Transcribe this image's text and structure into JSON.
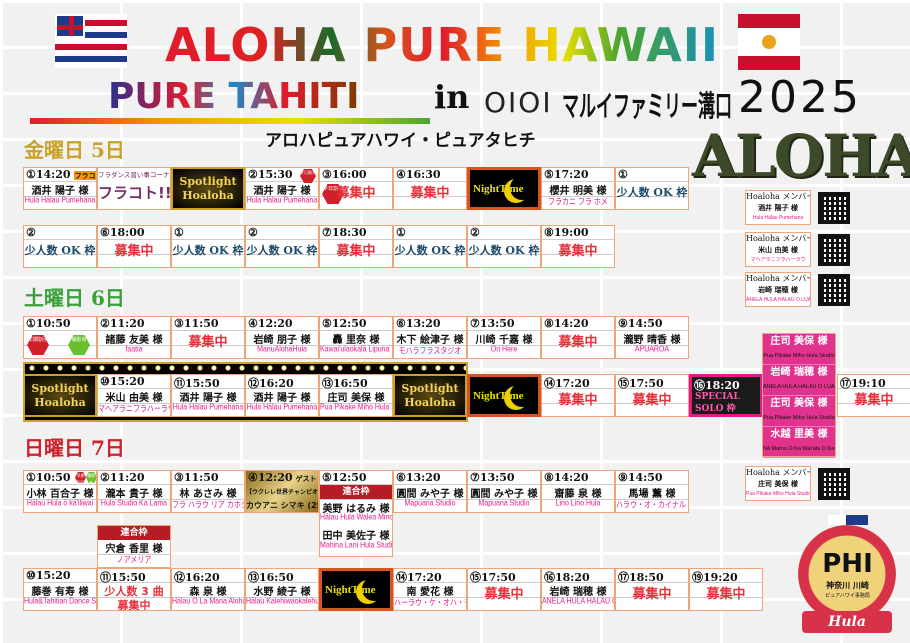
{
  "header": {
    "title_line1": "ALOHA PURE HAWAII",
    "title_line2": "PURE TAHITI",
    "in": "in",
    "marui_logo": "OIOI",
    "venue": "マルイファミリー溝口",
    "year": "2025",
    "subtitle": "アロハピュアハワイ・ピュアタヒチ",
    "aloha_logo": "ALOHA",
    "flags": [
      "hawaii-flag",
      "french-polynesia-flag"
    ]
  },
  "colors": {
    "cell_border": "#f0a578",
    "studio": "#e6198a",
    "recruit": "#e8303a",
    "small_group": "#1b4a6b",
    "friday": "#c9a227",
    "saturday": "#3aa13a",
    "sunday": "#d0202a"
  },
  "friday": {
    "label": "金曜日 5日",
    "rows": [
      {
        "slots": [
          {
            "type": "perf",
            "no": "①",
            "time": "14:20",
            "tag": "フラコト",
            "name": "酒井 陽子 様",
            "studio": "Hula Hālau Pumehana"
          },
          {
            "type": "furakoto",
            "top": "フラダンス習い事コーナー",
            "big": "フラコト!!"
          },
          {
            "type": "spotlight",
            "label": "Spotlight\nHoaloha"
          },
          {
            "type": "perf",
            "no": "②",
            "time": "15:30",
            "badge": "平日割引",
            "name": "酒井 陽子 様",
            "studio": "Hula Hālau Pumehana"
          },
          {
            "type": "recruit",
            "no": "③",
            "time": "16:00",
            "badge": "平日割引",
            "status": "募集中"
          },
          {
            "type": "recruit",
            "no": "④",
            "time": "16:30",
            "status": "募集中"
          },
          {
            "type": "night",
            "label": "NightTime"
          },
          {
            "type": "perf",
            "no": "⑤",
            "time": "17:20",
            "name": "櫻井 明美 様",
            "studio": "フラカニ フラ ホメ"
          },
          {
            "type": "small",
            "no": "①",
            "status": "少人数 OK 枠"
          }
        ]
      },
      {
        "slots": [
          {
            "type": "small",
            "no": "②",
            "status": "少人数 OK 枠"
          },
          {
            "type": "recruit",
            "no": "⑥",
            "time": "18:00",
            "status": "募集中"
          },
          {
            "type": "small",
            "no": "①",
            "status": "少人数 OK 枠"
          },
          {
            "type": "small",
            "no": "②",
            "status": "少人数 OK 枠"
          },
          {
            "type": "recruit",
            "no": "⑦",
            "time": "18:30",
            "status": "募集中"
          },
          {
            "type": "small",
            "no": "①",
            "status": "少人数 OK 枠"
          },
          {
            "type": "small",
            "no": "②",
            "status": "少人数 OK 枠"
          },
          {
            "type": "recruit",
            "no": "⑧",
            "time": "19:00",
            "status": "募集中"
          }
        ]
      }
    ]
  },
  "saturday": {
    "label": "土曜日 6日",
    "rows": [
      {
        "slots": [
          {
            "type": "badges",
            "no": "①",
            "time": "10:50",
            "badges": [
              "早期割引",
              "撮影有"
            ]
          },
          {
            "type": "perf",
            "no": "②",
            "time": "11:20",
            "name": "諸藤 友美 様",
            "studio": "faatia"
          },
          {
            "type": "recruit",
            "no": "③",
            "time": "11:50",
            "status": "募集中"
          },
          {
            "type": "perf",
            "no": "④",
            "time": "12:20",
            "name": "岩崎 朋子 様",
            "studio": "ManuAlohaHula"
          },
          {
            "type": "perf",
            "no": "⑤",
            "time": "12:50",
            "name": "轟 里奈 様",
            "studio": "Kawai'ulaokalā Lipuna KA HULA LINO NA HOKU"
          },
          {
            "type": "perf",
            "no": "⑥",
            "time": "13:20",
            "name": "木下 絵津子 様",
            "studio": "モハラフラスタジオ"
          },
          {
            "type": "perf",
            "no": "⑦",
            "time": "13:50",
            "name": "川崎 千嘉 様",
            "studio": "Ori Here"
          },
          {
            "type": "recruit",
            "no": "⑧",
            "time": "14:20",
            "status": "募集中"
          },
          {
            "type": "perf",
            "no": "⑨",
            "time": "14:50",
            "name": "瀧野 晴香 様",
            "studio": "APUAROA"
          }
        ]
      },
      {
        "slots": [
          {
            "type": "spotlight",
            "label": "Spotlight\nHoaloha"
          },
          {
            "type": "perf",
            "no": "⑩",
            "time": "15:20",
            "name": "米山 由美 様",
            "studio": "マヘアラニフラハーラウ"
          },
          {
            "type": "perf",
            "no": "⑪",
            "time": "15:50",
            "name": "酒井 陽子 様",
            "studio": "Hula Hālau Pumehana"
          },
          {
            "type": "perf",
            "no": "⑫",
            "time": "16:20",
            "name": "酒井 陽子 様",
            "studio": "Hula Hālau Pumehana"
          },
          {
            "type": "perf",
            "no": "⑬",
            "time": "16:50",
            "name": "庄司 美保 様",
            "studio": "Pua Pīkake Miho Hula Studio"
          },
          {
            "type": "spotlight",
            "label": "Spotlight\nHoaloha"
          },
          {
            "type": "night",
            "label": "NightTime"
          },
          {
            "type": "recruit",
            "no": "⑭",
            "time": "17:20",
            "status": "募集中"
          },
          {
            "type": "recruit",
            "no": "⑮",
            "time": "17:50",
            "status": "募集中"
          },
          {
            "type": "special",
            "no": "⑯",
            "time": "18:20",
            "label": "SPECIAL\nSOLO 枠"
          },
          {
            "type": "stack",
            "members": [
              {
                "name": "庄司 美保 様",
                "studio": "Pua Pīkake Miho Hula Studio"
              },
              {
                "name": "岩崎 瑞穂 様",
                "studio": "ANELA HULA HALAU O LUANA"
              },
              {
                "name": "庄司 美保 様",
                "studio": "Pua Pīkake Miho Hula Studio"
              },
              {
                "name": "水越 里美 様",
                "studio": "Nā Mamo O Ka Wai'ala O Ka Lani"
              }
            ]
          },
          {
            "type": "recruit",
            "no": "⑰",
            "time": "19:10",
            "status": "募集中"
          }
        ]
      }
    ]
  },
  "sunday": {
    "label": "日曜日 7日",
    "rows": [
      {
        "slots": [
          {
            "type": "perf",
            "no": "①",
            "time": "10:50",
            "badges": [
              "早期割引",
              "撮影有"
            ],
            "name": "小林 百合子 様",
            "studio": "Hālau Hula ō kā'iliwai"
          },
          {
            "type": "perf",
            "no": "②",
            "time": "11:20",
            "name": "瀧本 貴子 様",
            "studio": "Hula Studio Ka Lama"
          },
          {
            "type": "perf",
            "no": "③",
            "time": "11:50",
            "name": "林 あさみ 様",
            "studio": "フラ ハラウ リア カホクラニ"
          },
          {
            "type": "guest",
            "no": "④",
            "time": "12:20",
            "tag": "ゲスト",
            "name": "【ウクレレ世界チャンピオン】",
            "studio": "カウアニ シマキ (25)"
          },
          {
            "type": "joint",
            "no": "⑤",
            "time": "12:50",
            "band": "連合枠",
            "name": "美野 はるみ 様",
            "studio": "Hālau Hula Walea Minoaka",
            "name2": "田中 美佐子 様",
            "studio2": "Mahina Lani Hula Studio"
          },
          {
            "type": "perf",
            "no": "⑥",
            "time": "13:20",
            "name": "圓間 みや子 様",
            "studio": "Mapuana Studio"
          },
          {
            "type": "perf",
            "no": "⑦",
            "time": "13:50",
            "name": "圓間 みや子 様",
            "studio": "Mapuana Studio"
          },
          {
            "type": "perf",
            "no": "⑧",
            "time": "14:20",
            "name": "齋藤 泉 様",
            "studio": "Lino Lino Hula"
          },
          {
            "type": "perf",
            "no": "⑨",
            "time": "14:50",
            "name": "馬場 薫 様",
            "studio": "ハラウ・オ・カイナル・カ・マリエ"
          }
        ]
      },
      {
        "slots": [
          {
            "type": "perf",
            "no": "⑩",
            "time": "15:20",
            "name": "藤巻 有寿 様",
            "studio": "Hula&Tahitian Dance Studio VAIMANA"
          },
          {
            "type": "small3",
            "no": "⑪",
            "time": "15:50",
            "status": "少人数 3 曲",
            "status2": "募集中"
          },
          {
            "type": "perf",
            "no": "⑫",
            "time": "16:20",
            "name": "森 泉 様",
            "studio": "Hālau O La Mana Aloha Hula"
          },
          {
            "type": "perf",
            "no": "⑬",
            "time": "16:50",
            "name": "水野 綾子 様",
            "studio": "Hālau Kalehiwaokalehuamamo"
          },
          {
            "type": "night",
            "label": "NightTime"
          },
          {
            "type": "perf",
            "no": "⑭",
            "time": "17:20",
            "name": "南 愛花 様",
            "studio": "ハーラウ・ケ・オハ・モアニケアラ"
          },
          {
            "type": "recruit",
            "no": "⑮",
            "time": "17:50",
            "status": "募集中"
          },
          {
            "type": "perf",
            "no": "⑯",
            "time": "18:20",
            "name": "岩崎 瑞穂 様",
            "studio": "ANELA HULA HALAU O LUANA"
          },
          {
            "type": "recruit",
            "no": "⑰",
            "time": "18:50",
            "status": "募集中"
          },
          {
            "type": "recruit",
            "no": "⑲",
            "time": "19:20",
            "status": "募集中"
          }
        ]
      }
    ],
    "extra": {
      "band": "連合枠",
      "name": "宍倉 香里 様",
      "studio": "ノアメリア"
    }
  },
  "members": [
    {
      "title": "Hoaloha メンバー",
      "name": "酒井 陽子 様",
      "studio": "Hula Hālau Pumehana"
    },
    {
      "title": "Hoaloha メンバー",
      "name": "米山 由美 様",
      "studio": "マヘアラニフラハーラウ"
    },
    {
      "title": "Hoaloha メンバー",
      "name": "岩崎 瑞穂 様",
      "studio": "ANELA HULA HALAU O LUANA"
    },
    {
      "title": "Hoaloha メンバー",
      "name": "庄司 美保 様",
      "studio": "Pua Pīkake Miho Hula Studio"
    }
  ],
  "badge": {
    "logo": "PHI",
    "location": "神奈川 川崎",
    "sub": "ピュアハワイ事務局",
    "ribbon": "Hula"
  }
}
